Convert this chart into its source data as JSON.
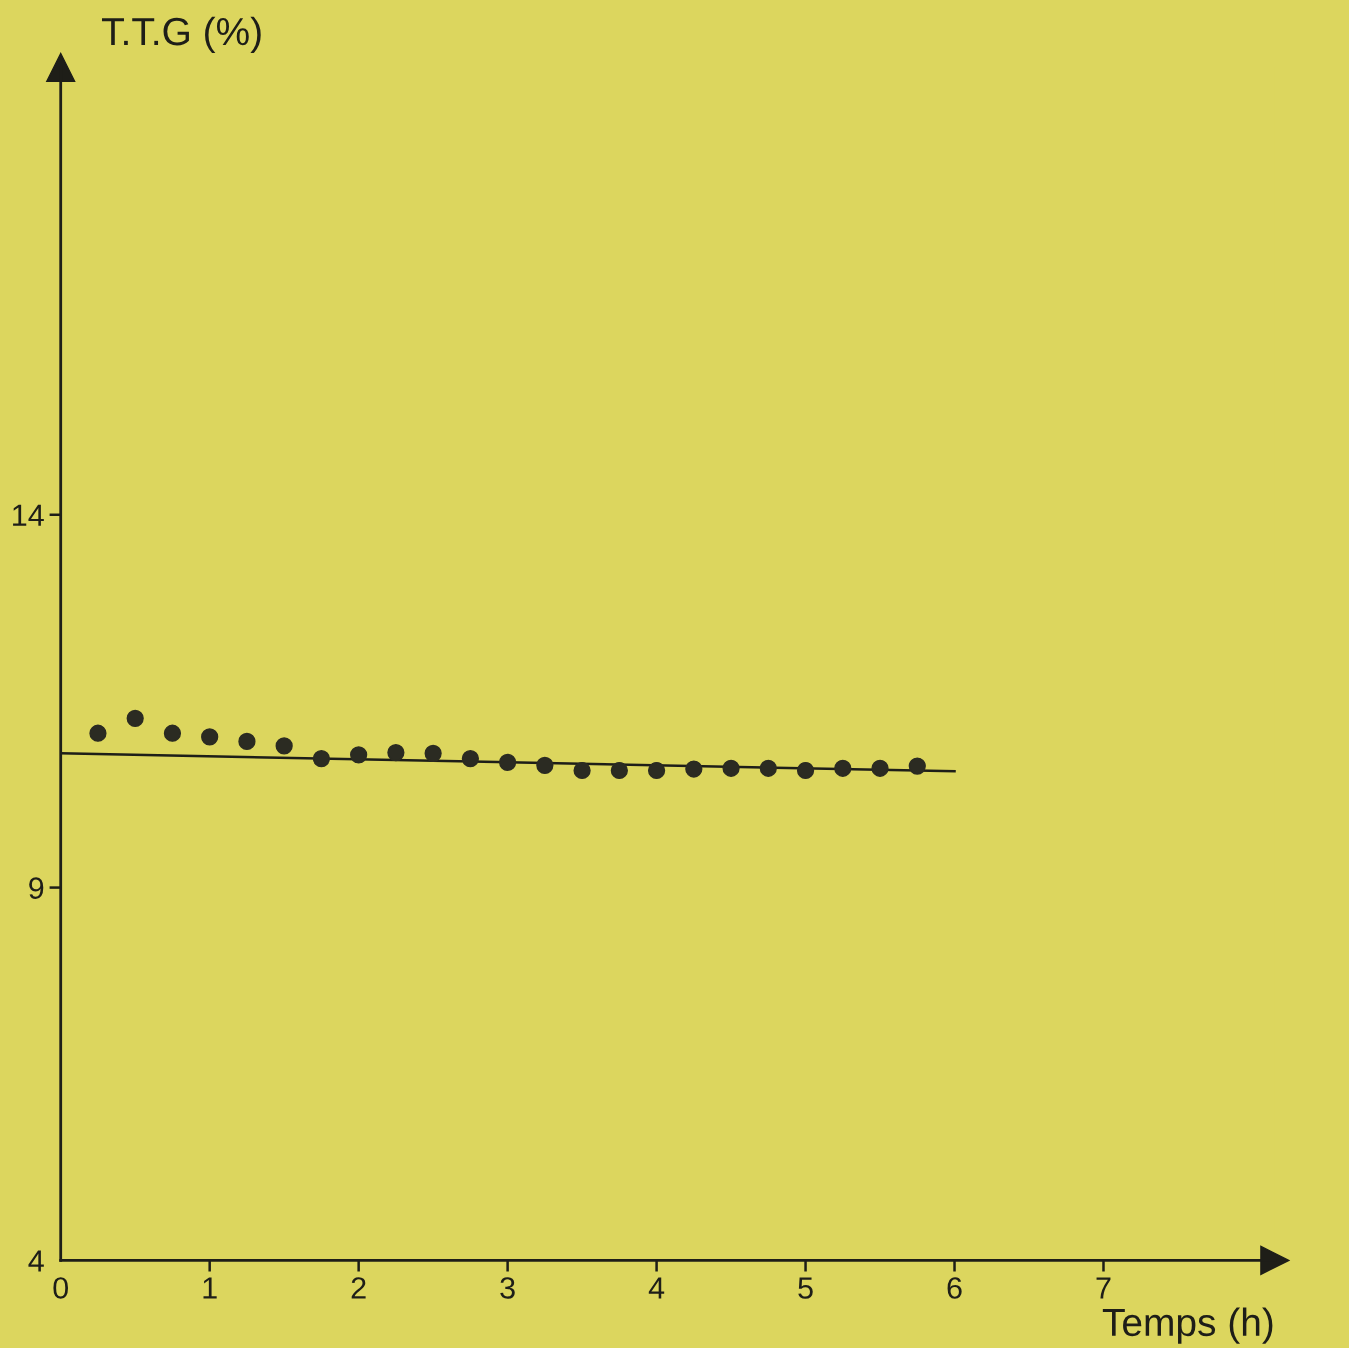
{
  "chart_data": {
    "type": "scatter",
    "xlabel": "Temps (h)",
    "ylabel": "T.T.G (%)",
    "xlim": [
      0,
      8.15
    ],
    "ylim": [
      4,
      20
    ],
    "xticks": [
      0,
      1,
      2,
      3,
      4,
      5,
      6,
      7
    ],
    "yticks": [
      4,
      9,
      14
    ],
    "grid": false,
    "legend": false,
    "series": [
      {
        "marker": "circle",
        "color": "#2b2b22",
        "x": [
          0.25,
          0.5,
          0.75,
          1,
          1.25,
          1.5,
          1.75,
          2,
          2.25,
          2.5,
          2.75,
          3,
          3.25,
          3.5,
          3.75,
          4,
          4.25,
          4.5,
          4.75,
          5,
          5.25,
          5.5,
          5.75
        ],
        "values": [
          11.07,
          11.27,
          11.07,
          11.02,
          10.96,
          10.9,
          10.73,
          10.78,
          10.81,
          10.8,
          10.73,
          10.68,
          10.64,
          10.57,
          10.57,
          10.57,
          10.59,
          10.6,
          10.6,
          10.57,
          10.6,
          10.6,
          10.63
        ]
      },
      {
        "type": "line",
        "color": "#1e1e18",
        "x": [
          0,
          6
        ],
        "values": [
          10.8,
          10.56
        ]
      }
    ]
  }
}
